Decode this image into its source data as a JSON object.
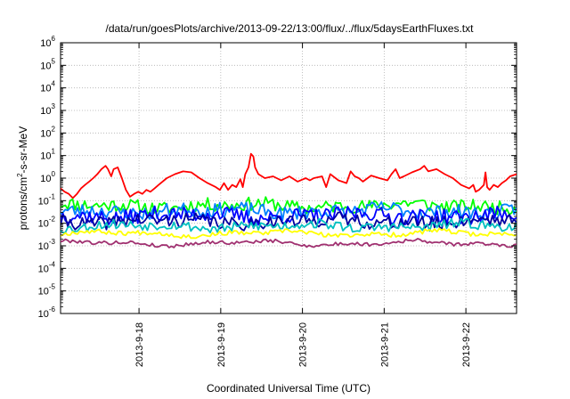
{
  "chart_data": {
    "type": "line",
    "title": "/data/run/goesPlots/archive/2013-09-22/13:00/flux/../flux/5daysEarthFluxes.txt",
    "xlabel": "Coordinated Universal Time (UTC)",
    "ylabel": {
      "prefix": "protons/cm",
      "sup": "2",
      "suffix": "-s-sr-MeV"
    },
    "y_scale": "log",
    "ylim_exponent": [
      -6,
      6
    ],
    "y_ticks": [
      {
        "base": "10",
        "exp": "6"
      },
      {
        "base": "10",
        "exp": "5"
      },
      {
        "base": "10",
        "exp": "4"
      },
      {
        "base": "10",
        "exp": "3"
      },
      {
        "base": "10",
        "exp": "2"
      },
      {
        "base": "10",
        "exp": "1"
      },
      {
        "base": "10",
        "exp": "0"
      },
      {
        "base": "10",
        "exp": "-1"
      },
      {
        "base": "10",
        "exp": "-2"
      },
      {
        "base": "10",
        "exp": "-3"
      },
      {
        "base": "10",
        "exp": "-4"
      },
      {
        "base": "10",
        "exp": "-5"
      },
      {
        "base": "10",
        "exp": "-6"
      }
    ],
    "xlim_days": [
      0,
      5.58
    ],
    "x_ticks": [
      {
        "label": "2013-9-18",
        "day": 0.96
      },
      {
        "label": "2013-9-19",
        "day": 1.96
      },
      {
        "label": "2013-9-20",
        "day": 2.96
      },
      {
        "label": "2013-9-21",
        "day": 3.96
      },
      {
        "label": "2013-9-22",
        "day": 4.96
      }
    ],
    "grid": true,
    "series": [
      {
        "color": "#ff0000",
        "points": [
          [
            0.0,
            0.35
          ],
          [
            0.05,
            0.25
          ],
          [
            0.1,
            0.2
          ],
          [
            0.15,
            0.13
          ],
          [
            0.2,
            0.2
          ],
          [
            0.25,
            0.35
          ],
          [
            0.3,
            0.5
          ],
          [
            0.35,
            0.7
          ],
          [
            0.4,
            1.0
          ],
          [
            0.45,
            1.5
          ],
          [
            0.5,
            2.5
          ],
          [
            0.55,
            3.5
          ],
          [
            0.58,
            2.5
          ],
          [
            0.62,
            1.2
          ],
          [
            0.65,
            2.5
          ],
          [
            0.7,
            3.0
          ],
          [
            0.75,
            1.0
          ],
          [
            0.8,
            0.3
          ],
          [
            0.85,
            0.15
          ],
          [
            0.9,
            0.2
          ],
          [
            0.95,
            0.25
          ],
          [
            1.0,
            0.2
          ],
          [
            1.05,
            0.3
          ],
          [
            1.1,
            0.25
          ],
          [
            1.15,
            0.35
          ],
          [
            1.2,
            0.5
          ],
          [
            1.3,
            1.0
          ],
          [
            1.4,
            1.5
          ],
          [
            1.5,
            2.0
          ],
          [
            1.6,
            1.8
          ],
          [
            1.7,
            1.0
          ],
          [
            1.8,
            0.6
          ],
          [
            1.9,
            0.4
          ],
          [
            1.95,
            0.3
          ],
          [
            2.0,
            0.6
          ],
          [
            2.05,
            0.3
          ],
          [
            2.1,
            0.5
          ],
          [
            2.15,
            0.4
          ],
          [
            2.2,
            0.9
          ],
          [
            2.23,
            0.4
          ],
          [
            2.26,
            1.5
          ],
          [
            2.3,
            3.0
          ],
          [
            2.33,
            12.0
          ],
          [
            2.36,
            9.0
          ],
          [
            2.38,
            3.0
          ],
          [
            2.42,
            1.5
          ],
          [
            2.5,
            1.0
          ],
          [
            2.6,
            1.2
          ],
          [
            2.7,
            0.8
          ],
          [
            2.8,
            1.2
          ],
          [
            2.9,
            0.7
          ],
          [
            3.0,
            1.0
          ],
          [
            3.05,
            0.8
          ],
          [
            3.1,
            1.0
          ],
          [
            3.2,
            1.2
          ],
          [
            3.25,
            0.4
          ],
          [
            3.3,
            1.5
          ],
          [
            3.4,
            0.8
          ],
          [
            3.5,
            0.6
          ],
          [
            3.55,
            2.0
          ],
          [
            3.6,
            1.2
          ],
          [
            3.65,
            1.0
          ],
          [
            3.7,
            0.7
          ],
          [
            3.8,
            1.3
          ],
          [
            3.9,
            1.0
          ],
          [
            4.0,
            0.8
          ],
          [
            4.05,
            1.5
          ],
          [
            4.1,
            2.5
          ],
          [
            4.15,
            1.0
          ],
          [
            4.2,
            1.2
          ],
          [
            4.3,
            1.8
          ],
          [
            4.4,
            2.5
          ],
          [
            4.45,
            3.5
          ],
          [
            4.5,
            2.0
          ],
          [
            4.6,
            2.5
          ],
          [
            4.7,
            1.5
          ],
          [
            4.8,
            1.0
          ],
          [
            4.9,
            0.5
          ],
          [
            5.0,
            0.35
          ],
          [
            5.05,
            0.5
          ],
          [
            5.08,
            0.25
          ],
          [
            5.12,
            0.3
          ],
          [
            5.18,
            0.5
          ],
          [
            5.2,
            1.8
          ],
          [
            5.22,
            0.4
          ],
          [
            5.25,
            0.3
          ],
          [
            5.3,
            0.5
          ],
          [
            5.35,
            0.4
          ],
          [
            5.4,
            0.6
          ],
          [
            5.45,
            0.8
          ],
          [
            5.5,
            1.2
          ],
          [
            5.58,
            1.5
          ]
        ]
      },
      {
        "color": "#00ff00",
        "base": 0.06,
        "jitter": 0.3,
        "seed": 11
      },
      {
        "color": "#0080ff",
        "base": 0.035,
        "jitter": 0.32,
        "seed": 23
      },
      {
        "color": "#0000ff",
        "base": 0.022,
        "jitter": 0.34,
        "seed": 37
      },
      {
        "color": "#0000a0",
        "base": 0.012,
        "jitter": 0.3,
        "seed": 41
      },
      {
        "color": "#00c0c0",
        "base": 0.0075,
        "jitter": 0.22,
        "seed": 53
      },
      {
        "color": "#ffff00",
        "base": 0.0035,
        "jitter": 0.1,
        "seed": 67
      },
      {
        "color": "#a03070",
        "base": 0.0013,
        "jitter": 0.08,
        "seed": 79
      }
    ]
  }
}
